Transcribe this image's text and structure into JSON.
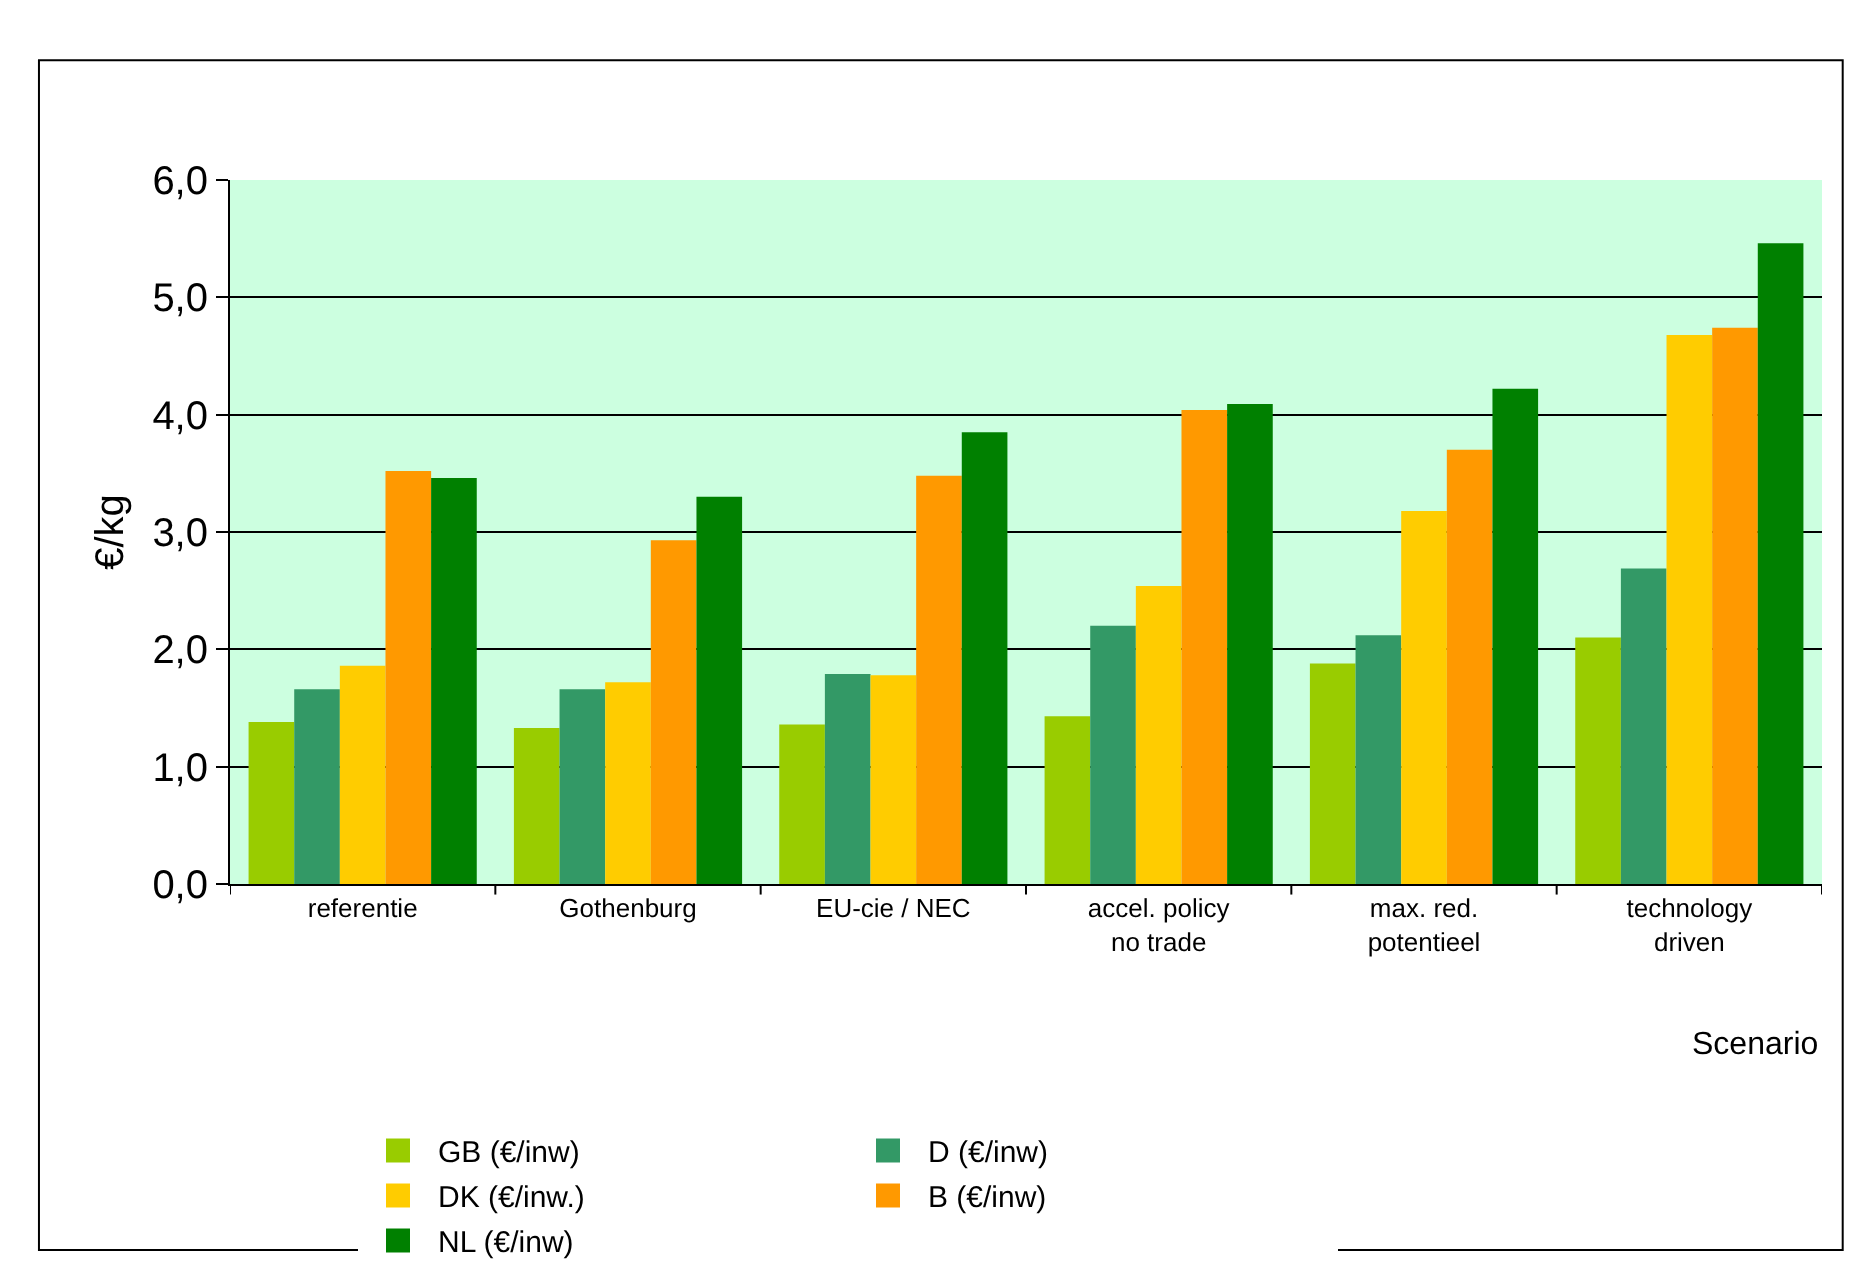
{
  "chart_data": {
    "type": "bar",
    "ylabel": "€/kg",
    "xlabel": "Scenario",
    "categories": [
      "referentie",
      "Gothenburg",
      "EU-cie / NEC",
      "accel. policy\nno trade",
      "max. red.\npotentieel",
      "technology\ndriven"
    ],
    "series": [
      {
        "name": "GB (€/inw)",
        "color": "#99cc00",
        "values": [
          1.38,
          1.33,
          1.36,
          1.43,
          1.88,
          2.1
        ]
      },
      {
        "name": "D (€/inw)",
        "color": "#339966",
        "values": [
          1.66,
          1.66,
          1.79,
          2.2,
          2.12,
          2.69
        ]
      },
      {
        "name": "DK (€/inw.)",
        "color": "#ffcc00",
        "values": [
          1.86,
          1.72,
          1.78,
          2.54,
          3.18,
          4.68
        ]
      },
      {
        "name": "B (€/inw)",
        "color": "#ff9900",
        "values": [
          3.52,
          2.93,
          3.48,
          4.04,
          3.7,
          4.74
        ]
      },
      {
        "name": "NL (€/inw)",
        "color": "#008000",
        "values": [
          3.46,
          3.3,
          3.85,
          4.09,
          4.22,
          5.46
        ]
      }
    ],
    "ylim": [
      0,
      6
    ],
    "yticks": [
      {
        "value": 0,
        "label": "0,0"
      },
      {
        "value": 1,
        "label": "1,0"
      },
      {
        "value": 2,
        "label": "2,0"
      },
      {
        "value": 3,
        "label": "3,0"
      },
      {
        "value": 4,
        "label": "4,0"
      },
      {
        "value": 5,
        "label": "5,0"
      },
      {
        "value": 6,
        "label": "6,0"
      }
    ],
    "grid": "y",
    "legend": "bottom"
  }
}
